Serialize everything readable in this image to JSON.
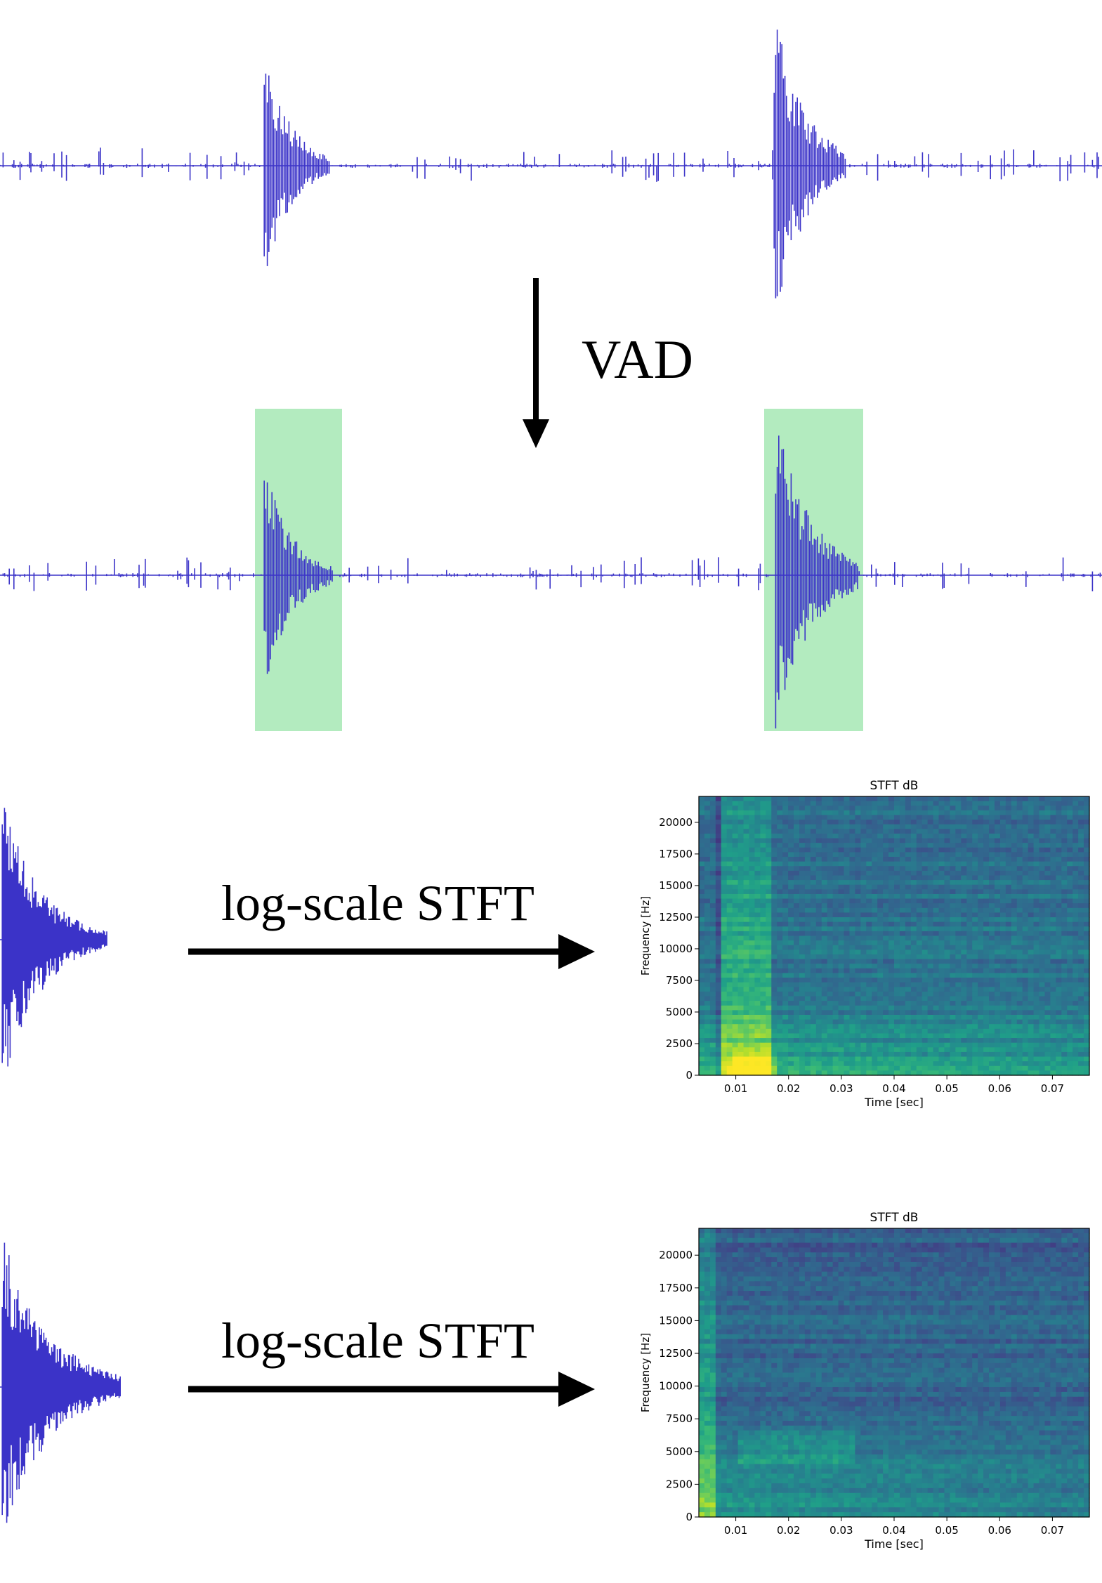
{
  "colors": {
    "waveform": "#3b33c8",
    "highlight": "#b3ebbf",
    "arrow": "#000000"
  },
  "labels": {
    "vad": "VAD",
    "stft_1": "log-scale STFT",
    "stft_2": "log-scale STFT"
  },
  "chart_data": [
    {
      "type": "heatmap",
      "title": "STFT dB",
      "xlabel": "Time [sec]",
      "ylabel": "Frequency [Hz]",
      "xlim": [
        0.003,
        0.077
      ],
      "ylim": [
        0,
        22050
      ],
      "x_ticks": [
        "0.01",
        "0.02",
        "0.03",
        "0.04",
        "0.05",
        "0.06",
        "0.07"
      ],
      "y_ticks": [
        "0",
        "2500",
        "5000",
        "7500",
        "10000",
        "12500",
        "15000",
        "17500",
        "20000"
      ],
      "colormap": "viridis"
    },
    {
      "type": "heatmap",
      "title": "STFT dB",
      "xlabel": "Time [sec]",
      "ylabel": "Frequency [Hz]",
      "xlim": [
        0.003,
        0.077
      ],
      "ylim": [
        0,
        22050
      ],
      "x_ticks": [
        "0.01",
        "0.02",
        "0.03",
        "0.04",
        "0.05",
        "0.06",
        "0.07"
      ],
      "y_ticks": [
        "0",
        "2500",
        "5000",
        "7500",
        "10000",
        "12500",
        "15000",
        "17500",
        "20000"
      ],
      "colormap": "viridis"
    }
  ]
}
